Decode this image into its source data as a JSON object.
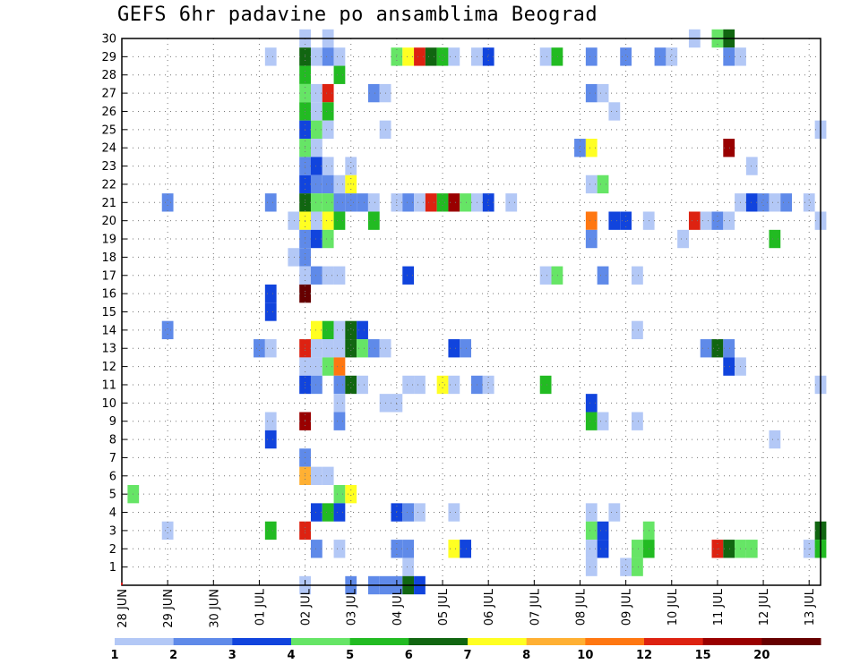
{
  "chart_data": {
    "type": "heatmap",
    "title": "GEFS 6hr padavine po ansamblima Beograd",
    "x_tick_labels": [
      "28 JUN",
      "29 JUN",
      "30 JUN",
      "01 JUL",
      "02 JUL",
      "03 JUL",
      "04 JUL",
      "05 JUL",
      "06 JUL",
      "07 JUL",
      "08 JUL",
      "09 JUL",
      "10 JUL",
      "11 JUL",
      "12 JUL",
      "13 JUL"
    ],
    "y_tick_labels": [
      "1",
      "2",
      "3",
      "4",
      "5",
      "6",
      "7",
      "8",
      "9",
      "10",
      "11",
      "12",
      "13",
      "14",
      "15",
      "16",
      "17",
      "18",
      "19",
      "20",
      "21",
      "22",
      "23",
      "24",
      "25",
      "26",
      "27",
      "28",
      "29",
      "30"
    ],
    "x_units": "6-hour steps from 28 JUN 00 UTC",
    "xlim": [
      0,
      61
    ],
    "ylim": [
      0,
      30
    ],
    "grid": true,
    "colorbar": {
      "bounds": [
        1,
        2,
        3,
        4,
        5,
        6,
        7,
        8,
        10,
        12,
        15,
        20
      ],
      "labels": [
        "1",
        "2",
        "3",
        "4",
        "5",
        "6",
        "7",
        "8",
        "10",
        "12",
        "15",
        "20"
      ],
      "colors": [
        "#b3c8f6",
        "#5f8ae9",
        "#1144dd",
        "#66e566",
        "#22bb22",
        "#116611",
        "#ffff22",
        "#ffb033",
        "#ff7711",
        "#dd2211",
        "#990000",
        "#660000"
      ]
    },
    "cells": [
      [
        1,
        30,
        16
      ],
      [
        1,
        30,
        18
      ],
      [
        1,
        30,
        50
      ],
      [
        4,
        30,
        52
      ],
      [
        6,
        30,
        53
      ],
      [
        1,
        29,
        13
      ],
      [
        6,
        29,
        16
      ],
      [
        1,
        29,
        17
      ],
      [
        2,
        29,
        18
      ],
      [
        1,
        29,
        19
      ],
      [
        4,
        29,
        24
      ],
      [
        7,
        29,
        25
      ],
      [
        10,
        29,
        26
      ],
      [
        6,
        29,
        27
      ],
      [
        5,
        29,
        28
      ],
      [
        1,
        29,
        29
      ],
      [
        1,
        29,
        31
      ],
      [
        3,
        29,
        32
      ],
      [
        1,
        29,
        37
      ],
      [
        5,
        29,
        38
      ],
      [
        2,
        29,
        41
      ],
      [
        2,
        29,
        44
      ],
      [
        2,
        29,
        47
      ],
      [
        1,
        29,
        48
      ],
      [
        2,
        29,
        53
      ],
      [
        1,
        29,
        54
      ],
      [
        5,
        28,
        16
      ],
      [
        5,
        28,
        19
      ],
      [
        4,
        27,
        16
      ],
      [
        1,
        27,
        17
      ],
      [
        10,
        27,
        18
      ],
      [
        2,
        27,
        22
      ],
      [
        1,
        27,
        23
      ],
      [
        2,
        27,
        41
      ],
      [
        1,
        27,
        42
      ],
      [
        5,
        26,
        16
      ],
      [
        1,
        26,
        17
      ],
      [
        5,
        26,
        18
      ],
      [
        1,
        26,
        43
      ],
      [
        3,
        25,
        16
      ],
      [
        4,
        25,
        17
      ],
      [
        1,
        25,
        18
      ],
      [
        1,
        25,
        23
      ],
      [
        1,
        25,
        61
      ],
      [
        4,
        24,
        16
      ],
      [
        1,
        24,
        17
      ],
      [
        2,
        24,
        40
      ],
      [
        7,
        24,
        41
      ],
      [
        11,
        24,
        53
      ],
      [
        2,
        23,
        16
      ],
      [
        3,
        23,
        17
      ],
      [
        1,
        23,
        18
      ],
      [
        1,
        23,
        20
      ],
      [
        1,
        23,
        55
      ],
      [
        3,
        22,
        16
      ],
      [
        2,
        22,
        17
      ],
      [
        2,
        22,
        18
      ],
      [
        1,
        22,
        19
      ],
      [
        7,
        22,
        20
      ],
      [
        1,
        22,
        41
      ],
      [
        4,
        22,
        42
      ],
      [
        2,
        21,
        4
      ],
      [
        2,
        21,
        13
      ],
      [
        6,
        21,
        16
      ],
      [
        4,
        21,
        17
      ],
      [
        4,
        21,
        18
      ],
      [
        2,
        21,
        19
      ],
      [
        2,
        21,
        20
      ],
      [
        2,
        21,
        21
      ],
      [
        1,
        21,
        22
      ],
      [
        1,
        21,
        24
      ],
      [
        2,
        21,
        25
      ],
      [
        1,
        21,
        26
      ],
      [
        10,
        21,
        27
      ],
      [
        5,
        21,
        28
      ],
      [
        11,
        21,
        29
      ],
      [
        4,
        21,
        30
      ],
      [
        1,
        21,
        31
      ],
      [
        3,
        21,
        32
      ],
      [
        1,
        21,
        34
      ],
      [
        1,
        21,
        54
      ],
      [
        3,
        21,
        55
      ],
      [
        2,
        21,
        56
      ],
      [
        1,
        21,
        57
      ],
      [
        2,
        21,
        58
      ],
      [
        1,
        21,
        60
      ],
      [
        1,
        20,
        15
      ],
      [
        7,
        20,
        16
      ],
      [
        1,
        20,
        17
      ],
      [
        7,
        20,
        18
      ],
      [
        5,
        20,
        19
      ],
      [
        5,
        20,
        22
      ],
      [
        9,
        20,
        41
      ],
      [
        3,
        20,
        43
      ],
      [
        3,
        20,
        44
      ],
      [
        1,
        20,
        46
      ],
      [
        10,
        20,
        50
      ],
      [
        1,
        20,
        51
      ],
      [
        2,
        20,
        52
      ],
      [
        1,
        20,
        53
      ],
      [
        1,
        20,
        61
      ],
      [
        2,
        19,
        16
      ],
      [
        3,
        19,
        17
      ],
      [
        4,
        19,
        18
      ],
      [
        2,
        19,
        41
      ],
      [
        1,
        19,
        49
      ],
      [
        5,
        19,
        57
      ],
      [
        1,
        18,
        15
      ],
      [
        2,
        18,
        16
      ],
      [
        1,
        17,
        16
      ],
      [
        2,
        17,
        17
      ],
      [
        1,
        17,
        18
      ],
      [
        1,
        17,
        19
      ],
      [
        3,
        17,
        25
      ],
      [
        1,
        17,
        37
      ],
      [
        4,
        17,
        38
      ],
      [
        2,
        17,
        42
      ],
      [
        1,
        17,
        45
      ],
      [
        3,
        16,
        13
      ],
      [
        12,
        16,
        16
      ],
      [
        3,
        15,
        13
      ],
      [
        2,
        14,
        4
      ],
      [
        7,
        14,
        17
      ],
      [
        5,
        14,
        18
      ],
      [
        1,
        14,
        19
      ],
      [
        6,
        14,
        20
      ],
      [
        3,
        14,
        21
      ],
      [
        1,
        14,
        45
      ],
      [
        2,
        13,
        12
      ],
      [
        1,
        13,
        13
      ],
      [
        10,
        13,
        16
      ],
      [
        1,
        13,
        17
      ],
      [
        1,
        13,
        18
      ],
      [
        1,
        13,
        19
      ],
      [
        6,
        13,
        20
      ],
      [
        4,
        13,
        21
      ],
      [
        2,
        13,
        22
      ],
      [
        1,
        13,
        23
      ],
      [
        3,
        13,
        29
      ],
      [
        2,
        13,
        30
      ],
      [
        2,
        13,
        51
      ],
      [
        6,
        13,
        52
      ],
      [
        2,
        13,
        53
      ],
      [
        1,
        12,
        16
      ],
      [
        1,
        12,
        17
      ],
      [
        4,
        12,
        18
      ],
      [
        9,
        12,
        19
      ],
      [
        3,
        12,
        53
      ],
      [
        1,
        12,
        54
      ],
      [
        3,
        11,
        16
      ],
      [
        2,
        11,
        17
      ],
      [
        2,
        11,
        19
      ],
      [
        6,
        11,
        20
      ],
      [
        1,
        11,
        21
      ],
      [
        1,
        11,
        25
      ],
      [
        1,
        11,
        26
      ],
      [
        7,
        11,
        28
      ],
      [
        1,
        11,
        29
      ],
      [
        2,
        11,
        31
      ],
      [
        1,
        11,
        32
      ],
      [
        5,
        11,
        37
      ],
      [
        1,
        11,
        61
      ],
      [
        1,
        10,
        19
      ],
      [
        1,
        10,
        23
      ],
      [
        1,
        10,
        24
      ],
      [
        3,
        10,
        41
      ],
      [
        1,
        9,
        13
      ],
      [
        11,
        9,
        16
      ],
      [
        2,
        9,
        19
      ],
      [
        5,
        9,
        41
      ],
      [
        1,
        9,
        42
      ],
      [
        1,
        9,
        45
      ],
      [
        3,
        8,
        13
      ],
      [
        1,
        8,
        57
      ],
      [
        2,
        7,
        16
      ],
      [
        8,
        6,
        16
      ],
      [
        1,
        6,
        17
      ],
      [
        1,
        6,
        18
      ],
      [
        4,
        5,
        1
      ],
      [
        4,
        5,
        19
      ],
      [
        7,
        5,
        20
      ],
      [
        3,
        4,
        17
      ],
      [
        5,
        4,
        18
      ],
      [
        3,
        4,
        19
      ],
      [
        3,
        4,
        24
      ],
      [
        2,
        4,
        25
      ],
      [
        1,
        4,
        26
      ],
      [
        1,
        4,
        29
      ],
      [
        1,
        4,
        41
      ],
      [
        1,
        4,
        43
      ],
      [
        1,
        3,
        4
      ],
      [
        5,
        3,
        13
      ],
      [
        10,
        3,
        16
      ],
      [
        4,
        3,
        41
      ],
      [
        3,
        3,
        42
      ],
      [
        4,
        3,
        46
      ],
      [
        6,
        3,
        61
      ],
      [
        2,
        2,
        17
      ],
      [
        1,
        2,
        19
      ],
      [
        2,
        2,
        24
      ],
      [
        2,
        2,
        25
      ],
      [
        7,
        2,
        29
      ],
      [
        3,
        2,
        30
      ],
      [
        1,
        2,
        41
      ],
      [
        3,
        2,
        42
      ],
      [
        4,
        2,
        45
      ],
      [
        5,
        2,
        46
      ],
      [
        10,
        2,
        52
      ],
      [
        6,
        2,
        53
      ],
      [
        4,
        2,
        54
      ],
      [
        4,
        2,
        55
      ],
      [
        1,
        2,
        60
      ],
      [
        5,
        2,
        61
      ],
      [
        1,
        1,
        25
      ],
      [
        1,
        1,
        41
      ],
      [
        1,
        1,
        44
      ],
      [
        4,
        1,
        45
      ],
      [
        1,
        0,
        16
      ],
      [
        2,
        0,
        20
      ],
      [
        2,
        0,
        22
      ],
      [
        2,
        0,
        23
      ],
      [
        2,
        0,
        24
      ],
      [
        6,
        0,
        25
      ],
      [
        3,
        0,
        26
      ]
    ]
  }
}
